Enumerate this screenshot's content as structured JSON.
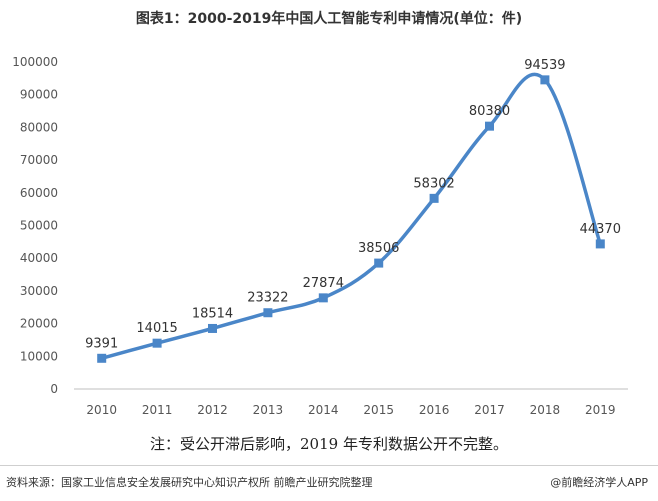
{
  "title": "图表1：2000-2019年中国人工智能专利申请情况(单位：件)",
  "note": "注：受公开滞后影响，2019 年专利数据公开不完整。",
  "source": "资料来源：国家工业信息安全发展研究中心知识产权所 前瞻产业研究院整理",
  "brand": "@前瞻经济学人APP",
  "chart_data": {
    "type": "line",
    "title": "图表1：2000-2019年中国人工智能专利申请情况(单位：件)",
    "xlabel": "",
    "ylabel": "",
    "categories": [
      "2010",
      "2011",
      "2012",
      "2013",
      "2014",
      "2015",
      "2016",
      "2017",
      "2018",
      "2019"
    ],
    "series": [
      {
        "values": [
          9391,
          14015,
          18514,
          23322,
          27874,
          38506,
          58302,
          80380,
          94539,
          44370
        ]
      }
    ],
    "data_labels": [
      "9391",
      "14015",
      "18514",
      "23322",
      "27874",
      "38506",
      "58302",
      "80380",
      "94539",
      "44370"
    ],
    "ylim": [
      0,
      100000
    ],
    "yticks": [
      "0",
      "10000",
      "20000",
      "30000",
      "40000",
      "50000",
      "60000",
      "70000",
      "80000",
      "90000",
      "100000"
    ],
    "ytick_values": [
      0,
      10000,
      20000,
      30000,
      40000,
      50000,
      60000,
      70000,
      80000,
      90000,
      100000
    ],
    "grid": false,
    "smooth": true,
    "colors": {
      "line": "#4a86c8",
      "marker": "#4a86c8",
      "axis": "#bfbfbf"
    }
  }
}
